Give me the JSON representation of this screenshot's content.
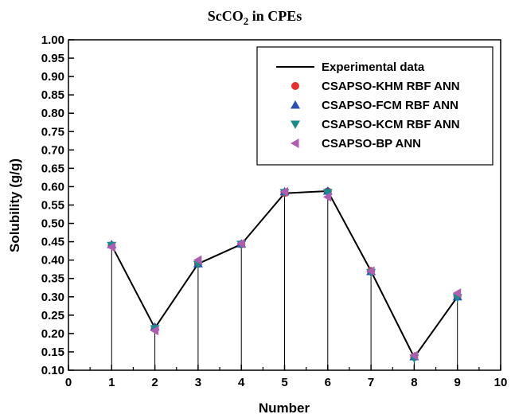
{
  "chart_data": {
    "type": "line",
    "title": {
      "main": "ScCO",
      "subscript": "2",
      "rest": " in CPEs"
    },
    "xlabel": "Number",
    "ylabel": "Solubility (g/g)",
    "xlim": [
      0,
      10
    ],
    "ylim": [
      0.1,
      1.0
    ],
    "x_ticks": [
      0,
      1,
      2,
      3,
      4,
      5,
      6,
      7,
      8,
      9,
      10
    ],
    "y_ticks": [
      0.1,
      0.15,
      0.2,
      0.25,
      0.3,
      0.35,
      0.4,
      0.45,
      0.5,
      0.55,
      0.6,
      0.65,
      0.7,
      0.75,
      0.8,
      0.85,
      0.9,
      0.95,
      1.0
    ],
    "grid": false,
    "drop_lines": true,
    "legend_position": "top-right",
    "x": [
      1,
      2,
      3,
      4,
      5,
      6,
      7,
      8,
      9
    ],
    "series": [
      {
        "name": "Experimental data",
        "marker": "line",
        "color": "#000000",
        "values": [
          0.44,
          0.215,
          0.39,
          0.443,
          0.582,
          0.588,
          0.37,
          0.135,
          0.3
        ]
      },
      {
        "name": "CSAPSO-KHM RBF ANN",
        "marker": "circle",
        "color": "#e8302a",
        "values": [
          0.44,
          0.215,
          0.39,
          0.443,
          0.583,
          0.587,
          0.37,
          0.136,
          0.301
        ]
      },
      {
        "name": "CSAPSO-FCM RBF ANN",
        "marker": "triangle-up",
        "color": "#2a4fb0",
        "values": [
          0.442,
          0.218,
          0.39,
          0.444,
          0.586,
          0.588,
          0.369,
          0.137,
          0.3
        ]
      },
      {
        "name": "CSAPSO-KCM RBF ANN",
        "marker": "triangle-down",
        "color": "#1a8c8c",
        "values": [
          0.44,
          0.213,
          0.388,
          0.443,
          0.584,
          0.584,
          0.366,
          0.133,
          0.298
        ]
      },
      {
        "name": "CSAPSO-BP ANN",
        "marker": "triangle-left",
        "color": "#b05cb0",
        "values": [
          0.435,
          0.208,
          0.4,
          0.445,
          0.586,
          0.572,
          0.37,
          0.14,
          0.31
        ]
      }
    ]
  }
}
